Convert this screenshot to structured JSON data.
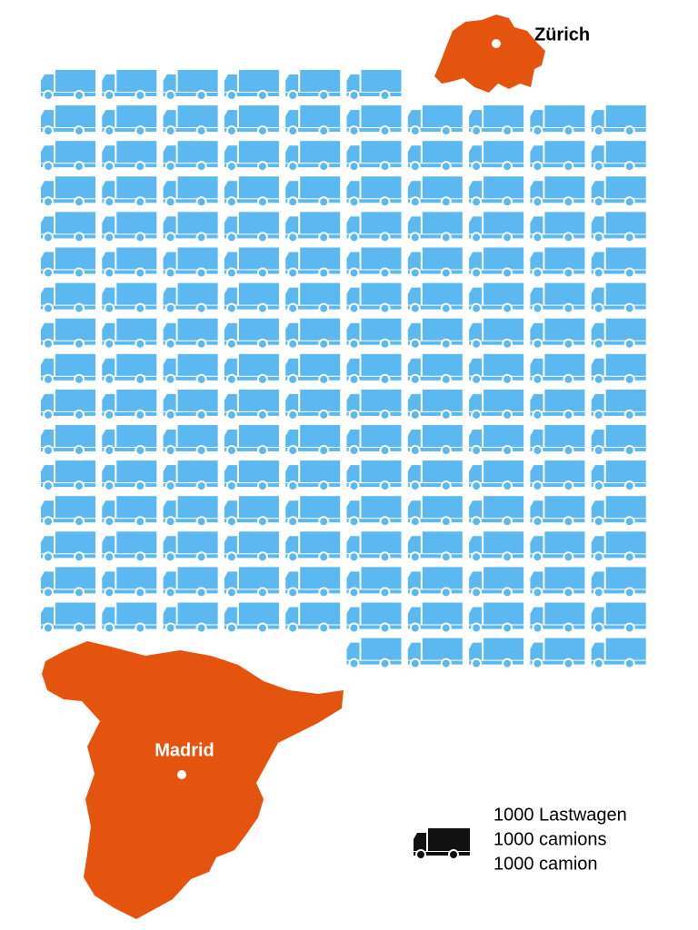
{
  "chart_data": {
    "type": "pictogram",
    "value": 161,
    "color": "#5bb8f0",
    "places": [
      "Zürich",
      "Madrid"
    ],
    "legend": [
      "1000 Lastwagen",
      "1000 camions",
      "1000 camion"
    ]
  }
}
